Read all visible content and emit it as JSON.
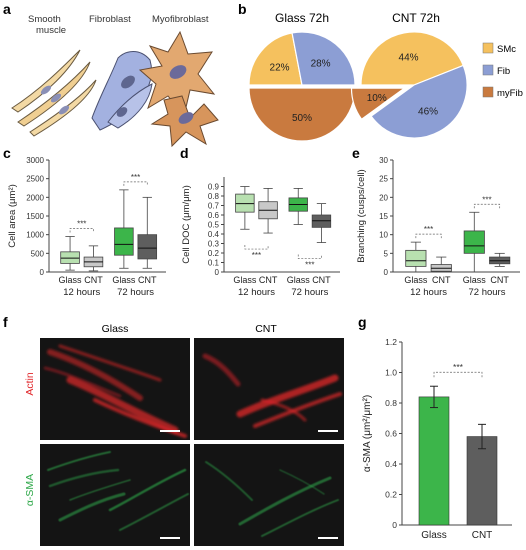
{
  "panels": {
    "a": {
      "letter": "a",
      "cell_labels": [
        {
          "lines": [
            "Smooth",
            "muscle"
          ]
        },
        {
          "lines": [
            "Fibroblast"
          ]
        },
        {
          "lines": [
            "Myofibroblast"
          ]
        }
      ]
    },
    "b": {
      "letter": "b"
    },
    "c": {
      "letter": "c"
    },
    "d": {
      "letter": "d"
    },
    "e": {
      "letter": "e"
    },
    "f": {
      "letter": "f",
      "col_labels": [
        "Glass",
        "CNT"
      ],
      "row_labels": [
        "Actin",
        "α-SMA"
      ]
    },
    "g": {
      "letter": "g"
    }
  },
  "colors": {
    "smc": "#f5c15e",
    "fib": "#8c9ed4",
    "myfib": "#c97a3f",
    "glass_light": "#b8e0b0",
    "cnt_light": "#c8c8c8",
    "glass_dark": "#3cb54a",
    "cnt_dark": "#5e5e5e",
    "actin": "#e0262a",
    "asma": "#2fa84a"
  },
  "chart_data": [
    {
      "id": "b",
      "type": "pie",
      "legend_position": "right",
      "legend": [
        "SMc",
        "Fib",
        "myFib"
      ],
      "pies": [
        {
          "title": "Glass 72h",
          "slices": [
            {
              "label": "SMc",
              "value": 22,
              "text": "22%"
            },
            {
              "label": "Fib",
              "value": 28,
              "text": "28%"
            },
            {
              "label": "myFib",
              "value": 50,
              "text": "50%"
            }
          ]
        },
        {
          "title": "CNT 72h",
          "slices": [
            {
              "label": "SMc",
              "value": 44,
              "text": "44%"
            },
            {
              "label": "Fib",
              "value": 46,
              "text": "46%"
            },
            {
              "label": "myFib",
              "value": 10,
              "text": "10%"
            }
          ]
        }
      ]
    },
    {
      "id": "c",
      "type": "box",
      "ylabel": "Cell area (μm²)",
      "ylim": [
        0,
        3000
      ],
      "yticks": [
        0,
        500,
        1000,
        1500,
        2000,
        2500,
        3000
      ],
      "categories": [
        "Glass",
        "CNT",
        "Glass",
        "CNT"
      ],
      "groups": [
        "12 hours",
        "72 hours"
      ],
      "significance": [
        "***",
        "***"
      ],
      "boxes": [
        {
          "min": 50,
          "q1": 230,
          "median": 370,
          "q3": 540,
          "max": 950
        },
        {
          "min": 30,
          "q1": 140,
          "median": 270,
          "q3": 400,
          "max": 700
        },
        {
          "min": 100,
          "q1": 450,
          "median": 740,
          "q3": 1180,
          "max": 2200
        },
        {
          "min": 100,
          "q1": 350,
          "median": 640,
          "q3": 1000,
          "max": 2000
        }
      ]
    },
    {
      "id": "d",
      "type": "box",
      "ylabel": "Cell DOC (μm/μm)",
      "ylim": [
        0,
        1
      ],
      "yticks": [
        0,
        0.1,
        0.2,
        0.3,
        0.4,
        0.5,
        0.6,
        0.7,
        0.8,
        0.9
      ],
      "categories": [
        "Glass",
        "CNT",
        "Glass",
        "CNT"
      ],
      "groups": [
        "12 hours",
        "72 hours"
      ],
      "significance": [
        "***",
        "***"
      ],
      "boxes": [
        {
          "min": 0.45,
          "q1": 0.63,
          "median": 0.72,
          "q3": 0.82,
          "max": 0.9
        },
        {
          "min": 0.41,
          "q1": 0.56,
          "median": 0.65,
          "q3": 0.74,
          "max": 0.88
        },
        {
          "min": 0.5,
          "q1": 0.64,
          "median": 0.71,
          "q3": 0.78,
          "max": 0.88
        },
        {
          "min": 0.31,
          "q1": 0.47,
          "median": 0.54,
          "q3": 0.6,
          "max": 0.72
        }
      ]
    },
    {
      "id": "e",
      "type": "box",
      "ylabel": "Branching (cusps/cell)",
      "ylim": [
        0,
        30
      ],
      "yticks": [
        0,
        5,
        10,
        15,
        20,
        25,
        30
      ],
      "categories": [
        "Glass",
        "CNT",
        "Glass",
        "CNT"
      ],
      "groups": [
        "12 hours",
        "72 hours"
      ],
      "significance": [
        "***",
        "***"
      ],
      "boxes": [
        {
          "min": 0,
          "q1": 1.5,
          "median": 3,
          "q3": 5.8,
          "max": 8
        },
        {
          "min": 0,
          "q1": 0.2,
          "median": 1,
          "q3": 2,
          "max": 4
        },
        {
          "min": 0,
          "q1": 5,
          "median": 7,
          "q3": 11,
          "max": 16
        },
        {
          "min": 1.5,
          "q1": 2.2,
          "median": 3,
          "q3": 4,
          "max": 5
        }
      ]
    },
    {
      "id": "g",
      "type": "bar",
      "ylabel": "α-SMA (μm²/μm²)",
      "ylim": [
        0,
        1.2
      ],
      "yticks": [
        0,
        0.2,
        0.4,
        0.6,
        0.8,
        1.0,
        1.2
      ],
      "ytick_labels": [
        "0",
        "0.2",
        "0.4",
        "0.6",
        "0.8",
        "1.0",
        "1.2"
      ],
      "categories": [
        "Glass",
        "CNT"
      ],
      "values": [
        0.84,
        0.58
      ],
      "errors": [
        0.07,
        0.08
      ],
      "significance": "***"
    }
  ]
}
